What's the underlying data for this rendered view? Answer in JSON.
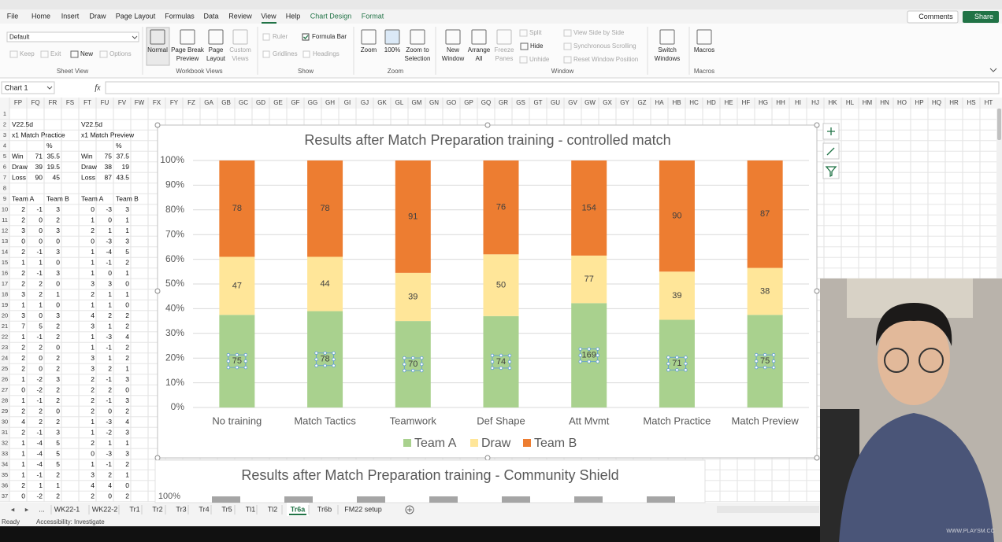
{
  "ribbon": {
    "tabs": [
      "File",
      "Home",
      "Insert",
      "Draw",
      "Page Layout",
      "Formulas",
      "Data",
      "Review",
      "View",
      "Help",
      "Chart Design",
      "Format"
    ],
    "comments": "Comments",
    "share": "Share",
    "groups": [
      {
        "name": "Sheet View",
        "items": [
          {
            "label": "Default"
          },
          {
            "label": "Keep",
            "disabled": true
          },
          {
            "label": "Exit",
            "disabled": true
          },
          {
            "label": "New"
          },
          {
            "label": "Options",
            "disabled": true
          }
        ]
      },
      {
        "name": "Workbook Views",
        "items": [
          {
            "label": "Normal"
          },
          {
            "label": [
              "Page Break",
              "Preview"
            ]
          },
          {
            "label": [
              "Page",
              "Layout"
            ]
          },
          {
            "label": [
              "Custom",
              "Views"
            ],
            "disabled": true
          }
        ]
      },
      {
        "name": "Show",
        "items": [
          {
            "label": "Ruler",
            "disabled": true
          },
          {
            "label": "Formula Bar"
          },
          {
            "label": "Gridlines",
            "disabled": true
          },
          {
            "label": "Headings",
            "disabled": true
          }
        ]
      },
      {
        "name": "Zoom",
        "items": [
          {
            "label": "Zoom"
          },
          {
            "label": "100%"
          },
          {
            "label": [
              "Zoom to",
              "Selection"
            ]
          }
        ]
      },
      {
        "name": "Window",
        "items": [
          {
            "label": [
              "New",
              "Window"
            ]
          },
          {
            "label": [
              "Arrange",
              "All"
            ]
          },
          {
            "label": [
              "Freeze",
              "Panes"
            ],
            "disabled": true
          },
          {
            "label": "Split",
            "disabled": true
          },
          {
            "label": "Hide"
          },
          {
            "label": "Unhide",
            "disabled": true
          },
          {
            "label": "View Side by Side",
            "disabled": true
          },
          {
            "label": "Synchronous Scrolling",
            "disabled": true
          },
          {
            "label": "Reset Window Position",
            "disabled": true
          },
          {
            "label": [
              "Switch",
              "Windows"
            ]
          }
        ]
      },
      {
        "name": "Macros",
        "items": [
          {
            "label": "Macros"
          }
        ]
      }
    ]
  },
  "name_box": "Chart 1",
  "fx": "fx",
  "sheet": {
    "columns": [
      "FP",
      "FQ",
      "FR",
      "FS",
      "FT",
      "FU",
      "FV",
      "FW",
      "FX",
      "FY",
      "FZ",
      "GA",
      "GB",
      "GC",
      "GD",
      "GE",
      "GF",
      "GG",
      "GH",
      "GI",
      "GJ",
      "GK",
      "GL",
      "GM",
      "GN",
      "GO",
      "GP",
      "GQ",
      "GR",
      "GS",
      "GT",
      "GU",
      "GV",
      "GW",
      "GX",
      "GY",
      "GZ",
      "HA",
      "HB",
      "HC",
      "HD",
      "HE",
      "HF",
      "HG",
      "HH",
      "HI",
      "HJ",
      "HK",
      "HL",
      "HM",
      "HN",
      "HO",
      "HP",
      "HQ",
      "HR",
      "HS",
      "HT"
    ],
    "row_headers": [
      1,
      2,
      3,
      4,
      5,
      6,
      7,
      8,
      9,
      10,
      11,
      12,
      13,
      14,
      15,
      16,
      17,
      18,
      19,
      20,
      21,
      22,
      23,
      24,
      25,
      26,
      27,
      28,
      29,
      30,
      31,
      32,
      33,
      34,
      35,
      36,
      37
    ],
    "rows": [
      [],
      [
        "V22.5d",
        null,
        null,
        null,
        "V22.5d"
      ],
      [
        "x1 Match Practice",
        null,
        null,
        null,
        "x1 Match Preview"
      ],
      [
        null,
        null,
        "%",
        null,
        null,
        null,
        "%"
      ],
      [
        "Win",
        71,
        35.5,
        null,
        "Win",
        75,
        37.5
      ],
      [
        "Draw",
        39,
        19.5,
        null,
        "Draw",
        38,
        19
      ],
      [
        "Loss",
        90,
        45,
        null,
        "Loss",
        87,
        43.5
      ],
      [],
      [
        "Team A",
        null,
        "Team B",
        null,
        "Team A",
        null,
        "Team B"
      ],
      [
        2,
        -1,
        3,
        null,
        0,
        -3,
        3
      ],
      [
        2,
        0,
        2,
        null,
        1,
        0,
        1
      ],
      [
        3,
        0,
        3,
        null,
        2,
        1,
        1
      ],
      [
        0,
        0,
        0,
        null,
        0,
        -3,
        3
      ],
      [
        2,
        -1,
        3,
        null,
        1,
        -4,
        5
      ],
      [
        1,
        1,
        0,
        null,
        1,
        -1,
        2
      ],
      [
        2,
        -1,
        3,
        null,
        1,
        0,
        1
      ],
      [
        2,
        2,
        0,
        null,
        3,
        3,
        0
      ],
      [
        3,
        2,
        1,
        null,
        2,
        1,
        1
      ],
      [
        1,
        1,
        0,
        null,
        1,
        1,
        0
      ],
      [
        3,
        0,
        3,
        null,
        4,
        2,
        2
      ],
      [
        7,
        5,
        2,
        null,
        3,
        1,
        2
      ],
      [
        1,
        -1,
        2,
        null,
        1,
        -3,
        4
      ],
      [
        2,
        2,
        0,
        null,
        1,
        -1,
        2
      ],
      [
        2,
        0,
        2,
        null,
        3,
        1,
        2
      ],
      [
        2,
        0,
        2,
        null,
        3,
        2,
        1
      ],
      [
        1,
        -2,
        3,
        null,
        2,
        -1,
        3
      ],
      [
        0,
        -2,
        2,
        null,
        2,
        2,
        0
      ],
      [
        1,
        -1,
        2,
        null,
        2,
        -1,
        3
      ],
      [
        2,
        2,
        0,
        null,
        2,
        0,
        2
      ],
      [
        4,
        2,
        2,
        null,
        1,
        -3,
        4
      ],
      [
        2,
        -1,
        3,
        null,
        1,
        -2,
        3
      ],
      [
        1,
        -4,
        5,
        null,
        2,
        1,
        1
      ],
      [
        1,
        -4,
        5,
        null,
        0,
        -3,
        3
      ],
      [
        1,
        -4,
        5,
        null,
        1,
        -1,
        2
      ],
      [
        1,
        -1,
        2,
        null,
        3,
        2,
        1
      ],
      [
        2,
        1,
        1,
        null,
        4,
        4,
        0
      ],
      [
        0,
        -2,
        2,
        null,
        2,
        0,
        2
      ]
    ]
  },
  "chart_data": {
    "type": "stacked_percent_bar",
    "title": "Results after Match Preparation training - controlled match",
    "categories": [
      "No training",
      "Match Tactics",
      "Teamwork",
      "Def Shape",
      "Att Mvmt",
      "Match Practice",
      "Match Preview"
    ],
    "series": [
      {
        "name": "Team A",
        "color": "#a9d18e",
        "values": [
          75,
          78,
          70,
          74,
          169,
          71,
          75
        ]
      },
      {
        "name": "Draw",
        "color": "#ffe699",
        "values": [
          47,
          44,
          39,
          50,
          77,
          39,
          38
        ]
      },
      {
        "name": "Team B",
        "color": "#ed7d31",
        "values": [
          78,
          78,
          91,
          76,
          154,
          90,
          87
        ]
      }
    ],
    "ylim": [
      0,
      100
    ],
    "yticks": [
      {
        "value": 0,
        "label": "0%"
      },
      {
        "value": 10,
        "label": "10%"
      },
      {
        "value": 20,
        "label": "20%"
      },
      {
        "value": 30,
        "label": "30%"
      },
      {
        "value": 40,
        "label": "40%"
      },
      {
        "value": 50,
        "label": "50%"
      },
      {
        "value": 60,
        "label": "60%"
      },
      {
        "value": 70,
        "label": "70%"
      },
      {
        "value": 80,
        "label": "80%"
      },
      {
        "value": 90,
        "label": "90%"
      },
      {
        "value": 100,
        "label": "100%"
      }
    ],
    "grid": true,
    "legend": "bottom"
  },
  "second_chart": {
    "title": "Results after Match Preparation training - Community Shield",
    "top_tick": "100%"
  },
  "sheet_tabs": [
    "...",
    "WK22-1",
    "WK22-2",
    "Tr1",
    "Tr2",
    "Tr3",
    "Tr4",
    "Tr5",
    "Tl1",
    "Tl2",
    "Tr6a",
    "Tr6b",
    "FM22 setup"
  ],
  "status": {
    "ready": "Ready",
    "accessibility": "Accessibility: Investigate"
  },
  "watermark": "WWW.PLAYSM.CC"
}
